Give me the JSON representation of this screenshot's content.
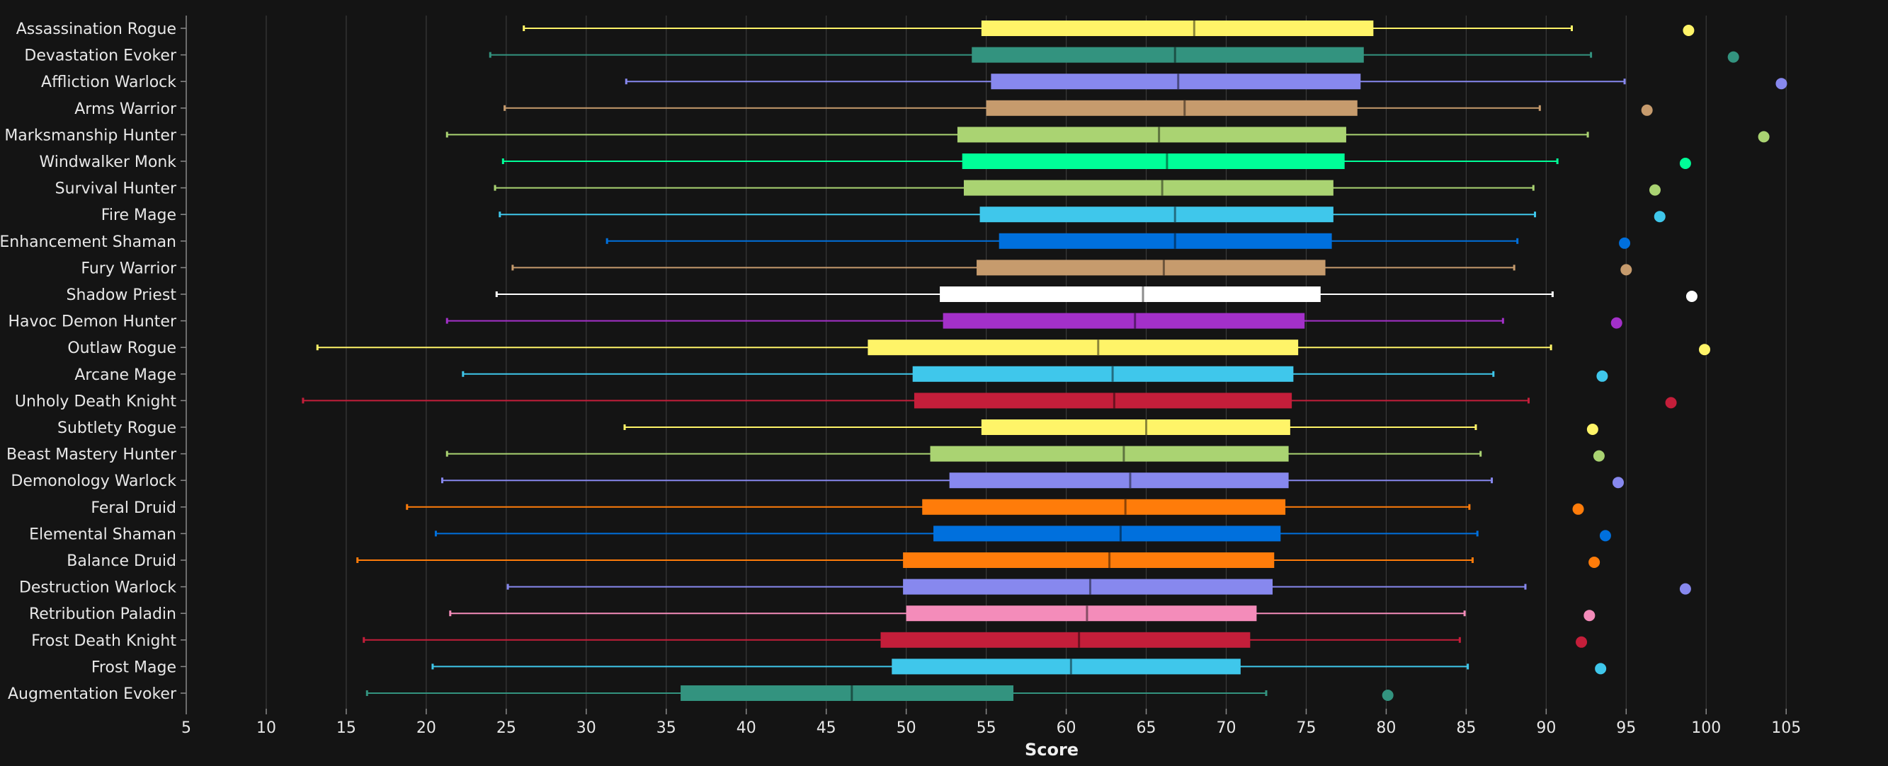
{
  "chart_data": {
    "type": "boxplot",
    "title": "",
    "xlabel": "Score",
    "ylabel": "",
    "xlim": [
      5,
      108
    ],
    "x_ticks": [
      5,
      10,
      15,
      20,
      25,
      30,
      35,
      40,
      45,
      50,
      55,
      60,
      65,
      70,
      75,
      80,
      85,
      90,
      95,
      100,
      105
    ],
    "grid": true,
    "series": [
      {
        "name": "Assassination Rogue",
        "color": "#fff468",
        "min": 26.1,
        "q1": 54.7,
        "median": 68.0,
        "q3": 79.2,
        "max": 91.6,
        "outlier": 98.9
      },
      {
        "name": "Devastation Evoker",
        "color": "#33937f",
        "min": 24.0,
        "q1": 54.1,
        "median": 66.8,
        "q3": 78.6,
        "max": 92.8,
        "outlier": 101.7
      },
      {
        "name": "Affliction Warlock",
        "color": "#8788ee",
        "min": 32.5,
        "q1": 55.3,
        "median": 67.0,
        "q3": 78.4,
        "max": 94.9,
        "outlier": 104.7
      },
      {
        "name": "Arms Warrior",
        "color": "#c69b6d",
        "min": 24.9,
        "q1": 55.0,
        "median": 67.4,
        "q3": 78.2,
        "max": 89.6,
        "outlier": 96.3
      },
      {
        "name": "Marksmanship Hunter",
        "color": "#aad372",
        "min": 21.3,
        "q1": 53.2,
        "median": 65.8,
        "q3": 77.5,
        "max": 92.6,
        "outlier": 103.6
      },
      {
        "name": "Windwalker Monk",
        "color": "#00ff98",
        "min": 24.8,
        "q1": 53.5,
        "median": 66.3,
        "q3": 77.4,
        "max": 90.7,
        "outlier": 98.7
      },
      {
        "name": "Survival Hunter",
        "color": "#aad372",
        "min": 24.3,
        "q1": 53.6,
        "median": 66.0,
        "q3": 76.7,
        "max": 89.2,
        "outlier": 96.8
      },
      {
        "name": "Fire Mage",
        "color": "#3fc7eb",
        "min": 24.6,
        "q1": 54.6,
        "median": 66.8,
        "q3": 76.7,
        "max": 89.3,
        "outlier": 97.1
      },
      {
        "name": "Enhancement Shaman",
        "color": "#0070dd",
        "min": 31.3,
        "q1": 55.8,
        "median": 66.8,
        "q3": 76.6,
        "max": 88.2,
        "outlier": 94.9
      },
      {
        "name": "Fury Warrior",
        "color": "#c69b6d",
        "min": 25.4,
        "q1": 54.4,
        "median": 66.1,
        "q3": 76.2,
        "max": 88.0,
        "outlier": 95.0
      },
      {
        "name": "Shadow Priest",
        "color": "#ffffff",
        "min": 24.4,
        "q1": 52.1,
        "median": 64.8,
        "q3": 75.9,
        "max": 90.4,
        "outlier": 99.1
      },
      {
        "name": "Havoc Demon Hunter",
        "color": "#a330c9",
        "min": 21.3,
        "q1": 52.3,
        "median": 64.3,
        "q3": 74.9,
        "max": 87.3,
        "outlier": 94.4
      },
      {
        "name": "Outlaw Rogue",
        "color": "#fff468",
        "min": 13.2,
        "q1": 47.6,
        "median": 62.0,
        "q3": 74.5,
        "max": 90.3,
        "outlier": 99.9
      },
      {
        "name": "Arcane Mage",
        "color": "#3fc7eb",
        "min": 22.3,
        "q1": 50.4,
        "median": 62.9,
        "q3": 74.2,
        "max": 86.7,
        "outlier": 93.5
      },
      {
        "name": "Unholy Death Knight",
        "color": "#c41e3a",
        "min": 12.3,
        "q1": 50.5,
        "median": 63.0,
        "q3": 74.1,
        "max": 88.9,
        "outlier": 97.8
      },
      {
        "name": "Subtlety Rogue",
        "color": "#fff468",
        "min": 32.4,
        "q1": 54.7,
        "median": 65.0,
        "q3": 74.0,
        "max": 85.6,
        "outlier": 92.9
      },
      {
        "name": "Beast Mastery Hunter",
        "color": "#aad372",
        "min": 21.3,
        "q1": 51.5,
        "median": 63.6,
        "q3": 73.9,
        "max": 85.9,
        "outlier": 93.3
      },
      {
        "name": "Demonology Warlock",
        "color": "#8788ee",
        "min": 21.0,
        "q1": 52.7,
        "median": 64.0,
        "q3": 73.9,
        "max": 86.6,
        "outlier": 94.5
      },
      {
        "name": "Feral Druid",
        "color": "#ff7c0a",
        "min": 18.8,
        "q1": 51.0,
        "median": 63.7,
        "q3": 73.7,
        "max": 85.2,
        "outlier": 92.0
      },
      {
        "name": "Elemental Shaman",
        "color": "#0070dd",
        "min": 20.6,
        "q1": 51.7,
        "median": 63.4,
        "q3": 73.4,
        "max": 85.7,
        "outlier": 93.7
      },
      {
        "name": "Balance Druid",
        "color": "#ff7c0a",
        "min": 15.7,
        "q1": 49.8,
        "median": 62.7,
        "q3": 73.0,
        "max": 85.4,
        "outlier": 93.0
      },
      {
        "name": "Destruction Warlock",
        "color": "#8788ee",
        "min": 25.1,
        "q1": 49.8,
        "median": 61.5,
        "q3": 72.9,
        "max": 88.7,
        "outlier": 98.7
      },
      {
        "name": "Retribution Paladin",
        "color": "#f48cba",
        "min": 21.5,
        "q1": 50.0,
        "median": 61.3,
        "q3": 71.9,
        "max": 84.9,
        "outlier": 92.7
      },
      {
        "name": "Frost Death Knight",
        "color": "#c41e3a",
        "min": 16.1,
        "q1": 48.4,
        "median": 60.8,
        "q3": 71.5,
        "max": 84.6,
        "outlier": 92.2
      },
      {
        "name": "Frost Mage",
        "color": "#3fc7eb",
        "min": 20.4,
        "q1": 49.1,
        "median": 60.3,
        "q3": 70.9,
        "max": 85.1,
        "outlier": 93.4
      },
      {
        "name": "Augmentation Evoker",
        "color": "#33937f",
        "min": 16.3,
        "q1": 35.9,
        "median": 46.6,
        "q3": 56.7,
        "max": 72.5,
        "outlier": 80.1
      }
    ]
  }
}
